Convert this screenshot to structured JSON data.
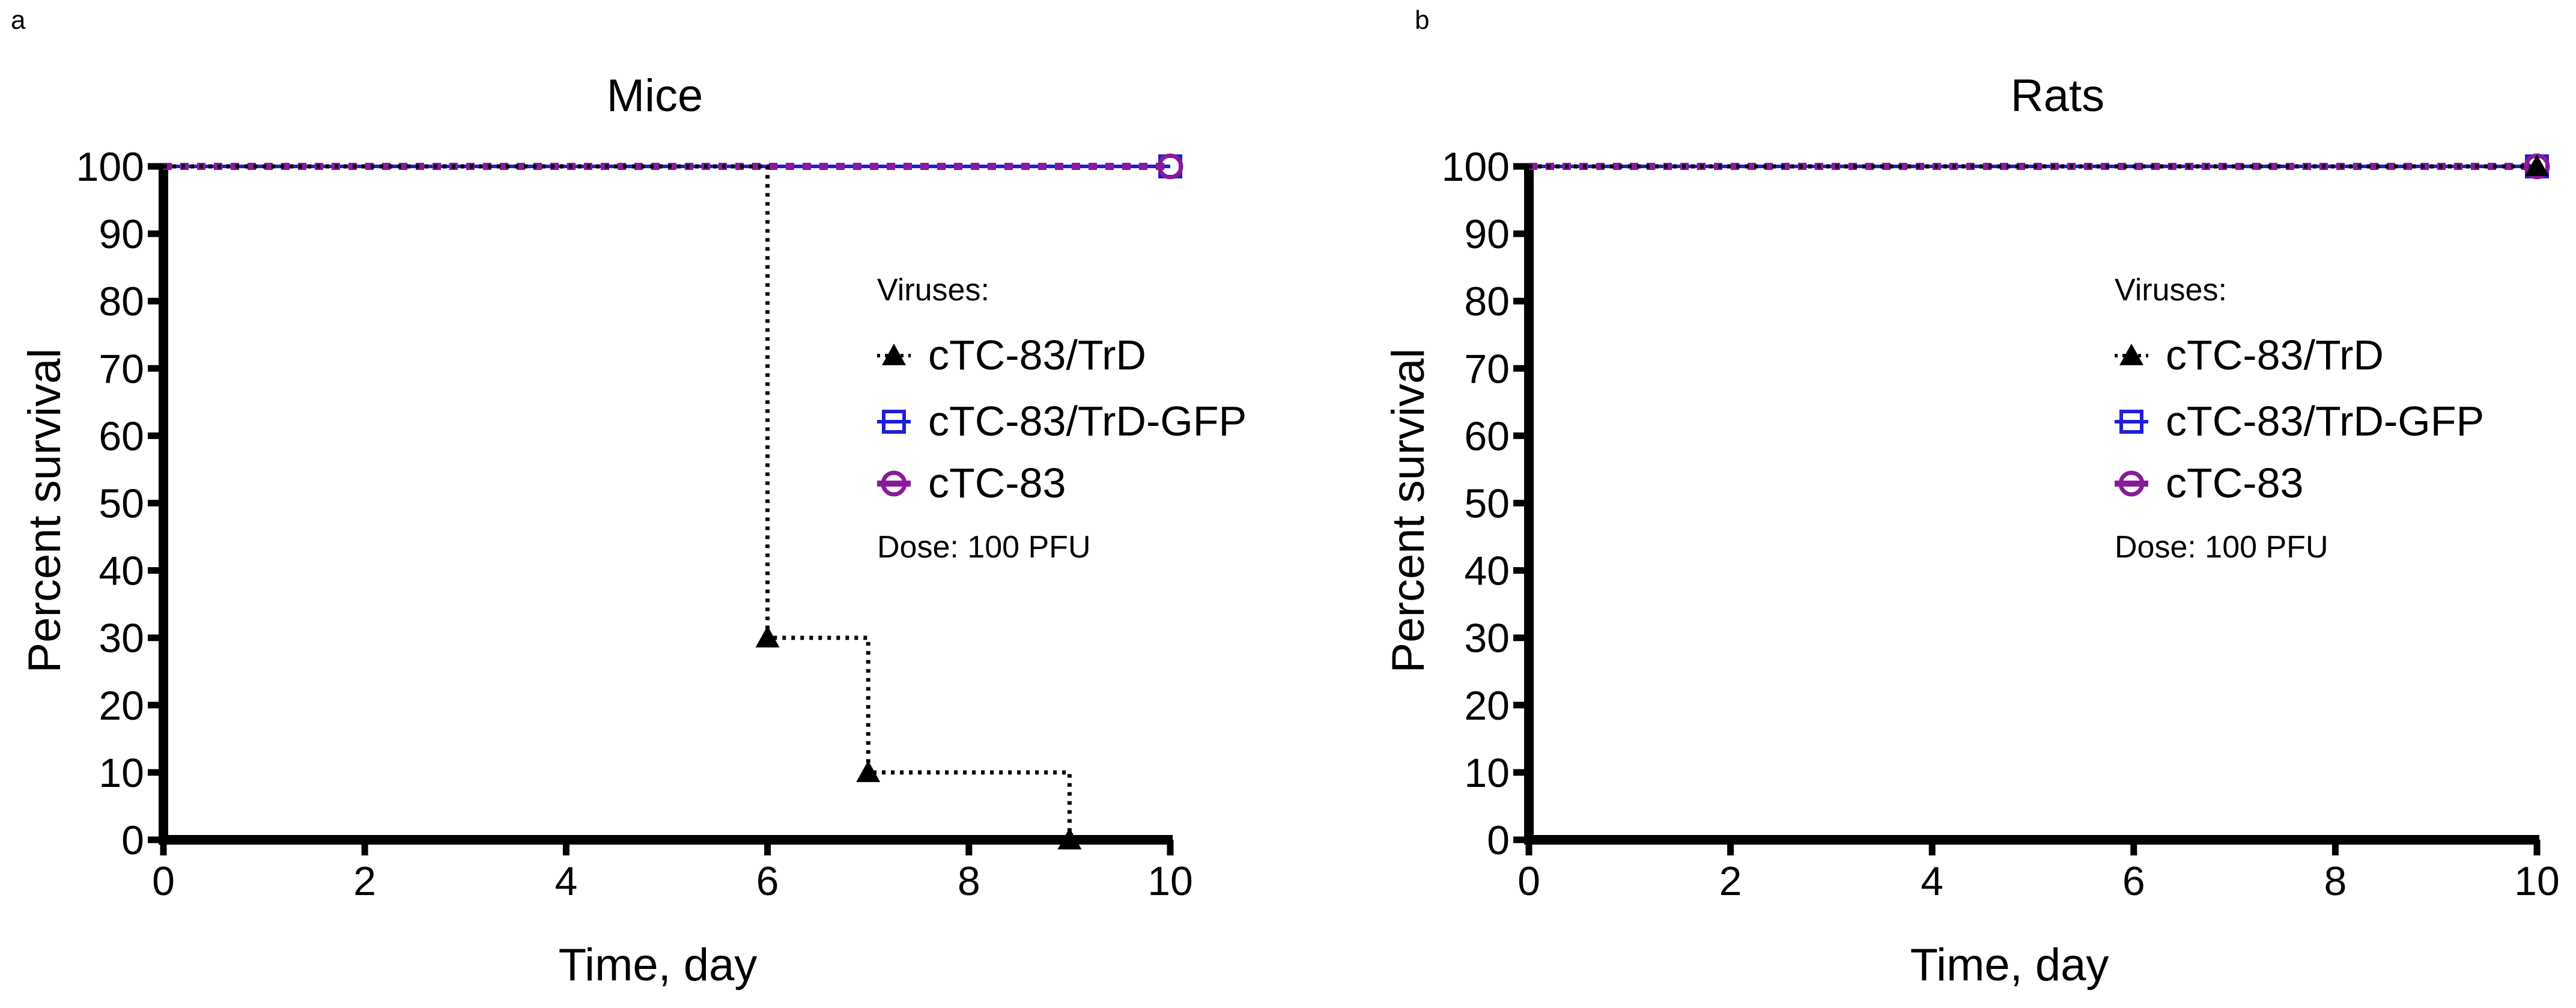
{
  "colors": {
    "trd": "#000000",
    "gfp": "#1f1fd6",
    "ctc83": "#8a1a9b",
    "axis": "#000000"
  },
  "chart_data": [
    {
      "panel": "a",
      "type": "line",
      "title": "Mice",
      "xlabel": "Time, day",
      "ylabel": "Percent survival",
      "xlim": [
        0,
        10
      ],
      "ylim": [
        0,
        100
      ],
      "xticks": [
        0,
        2,
        4,
        6,
        8,
        10
      ],
      "yticks": [
        0,
        10,
        20,
        30,
        40,
        50,
        60,
        70,
        80,
        90,
        100
      ],
      "legend_title": "Viruses:",
      "dose": "Dose: 100 PFU",
      "legend_position": "right",
      "series": [
        {
          "key": "trd",
          "name": "cTC-83/TrD",
          "marker": "triangle",
          "line": "dotted",
          "points": [
            [
              0,
              100
            ],
            [
              6,
              100
            ],
            [
              6,
              30
            ],
            [
              7,
              30
            ],
            [
              7,
              10
            ],
            [
              9,
              10
            ],
            [
              9,
              0
            ]
          ],
          "markers": [
            [
              6,
              30
            ],
            [
              7,
              10
            ],
            [
              9,
              0
            ]
          ]
        },
        {
          "key": "gfp",
          "name": "cTC-83/TrD-GFP",
          "marker": "square",
          "line": "solid",
          "points": [
            [
              0,
              100
            ],
            [
              10,
              100
            ]
          ],
          "markers": [
            [
              10,
              100
            ]
          ]
        },
        {
          "key": "ctc83",
          "name": "cTC-83",
          "marker": "circle",
          "line": "dashed",
          "points": [
            [
              0,
              100
            ],
            [
              10,
              100
            ]
          ],
          "markers": [
            [
              10,
              100
            ]
          ]
        }
      ]
    },
    {
      "panel": "b",
      "type": "line",
      "title": "Rats",
      "xlabel": "Time, day",
      "ylabel": "Percent survival",
      "xlim": [
        0,
        10
      ],
      "ylim": [
        0,
        100
      ],
      "xticks": [
        0,
        2,
        4,
        6,
        8,
        10
      ],
      "yticks": [
        0,
        10,
        20,
        30,
        40,
        50,
        60,
        70,
        80,
        90,
        100
      ],
      "legend_title": "Viruses:",
      "dose": "Dose: 100 PFU",
      "legend_position": "right",
      "series": [
        {
          "key": "trd",
          "name": "cTC-83/TrD",
          "marker": "triangle",
          "line": "dotted",
          "points": [
            [
              0,
              100
            ],
            [
              10,
              100
            ]
          ],
          "markers": [
            [
              10,
              100
            ]
          ]
        },
        {
          "key": "gfp",
          "name": "cTC-83/TrD-GFP",
          "marker": "square",
          "line": "solid",
          "points": [
            [
              0,
              100
            ],
            [
              10,
              100
            ]
          ],
          "markers": [
            [
              10,
              100
            ]
          ]
        },
        {
          "key": "ctc83",
          "name": "cTC-83",
          "marker": "circle",
          "line": "dashed",
          "points": [
            [
              0,
              100
            ],
            [
              10,
              100
            ]
          ],
          "markers": [
            [
              10,
              100
            ]
          ]
        }
      ]
    }
  ]
}
